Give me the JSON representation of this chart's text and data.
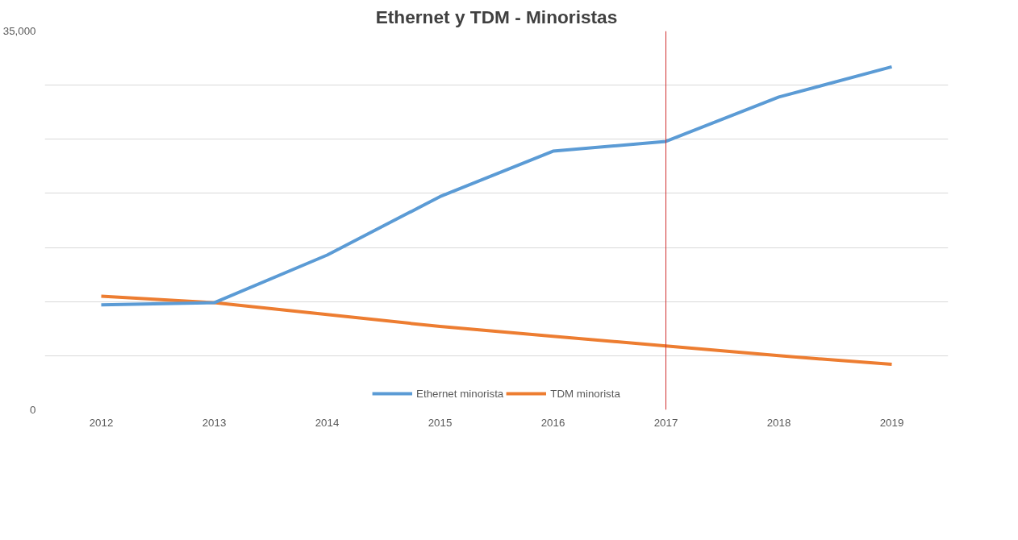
{
  "chart_data": {
    "type": "line",
    "title": "Ethernet y TDM - Minoristas",
    "categories": [
      "2012",
      "2013",
      "2014",
      "2015",
      "2016",
      "2017",
      "2018",
      "2019"
    ],
    "series": [
      {
        "name": "Ethernet minorista",
        "color": "#5b9bd5",
        "values": [
          9700,
          9900,
          14300,
          19700,
          23900,
          24800,
          28900,
          31700
        ]
      },
      {
        "name": "TDM minorista",
        "color": "#ed7d31",
        "values": [
          10500,
          9900,
          8800,
          7700,
          6800,
          5900,
          5000,
          4200
        ]
      }
    ],
    "ylim": [
      0,
      35000
    ],
    "yticks": [
      0,
      {
        "value": 5000,
        "label": null
      },
      {
        "value": 10000,
        "label": null
      },
      {
        "value": 15000,
        "label": null
      },
      {
        "value": 20000,
        "label": null
      },
      {
        "value": 25000,
        "label": null
      },
      {
        "value": 30000,
        "label": null
      },
      {
        "value": 35000,
        "label": "35,000"
      }
    ],
    "grid": "y",
    "legend": "bottom",
    "marker": "none",
    "line_style": "solid",
    "ref_lines": [
      {
        "axis": "x",
        "value": "2017",
        "color": "#d03030"
      }
    ]
  }
}
